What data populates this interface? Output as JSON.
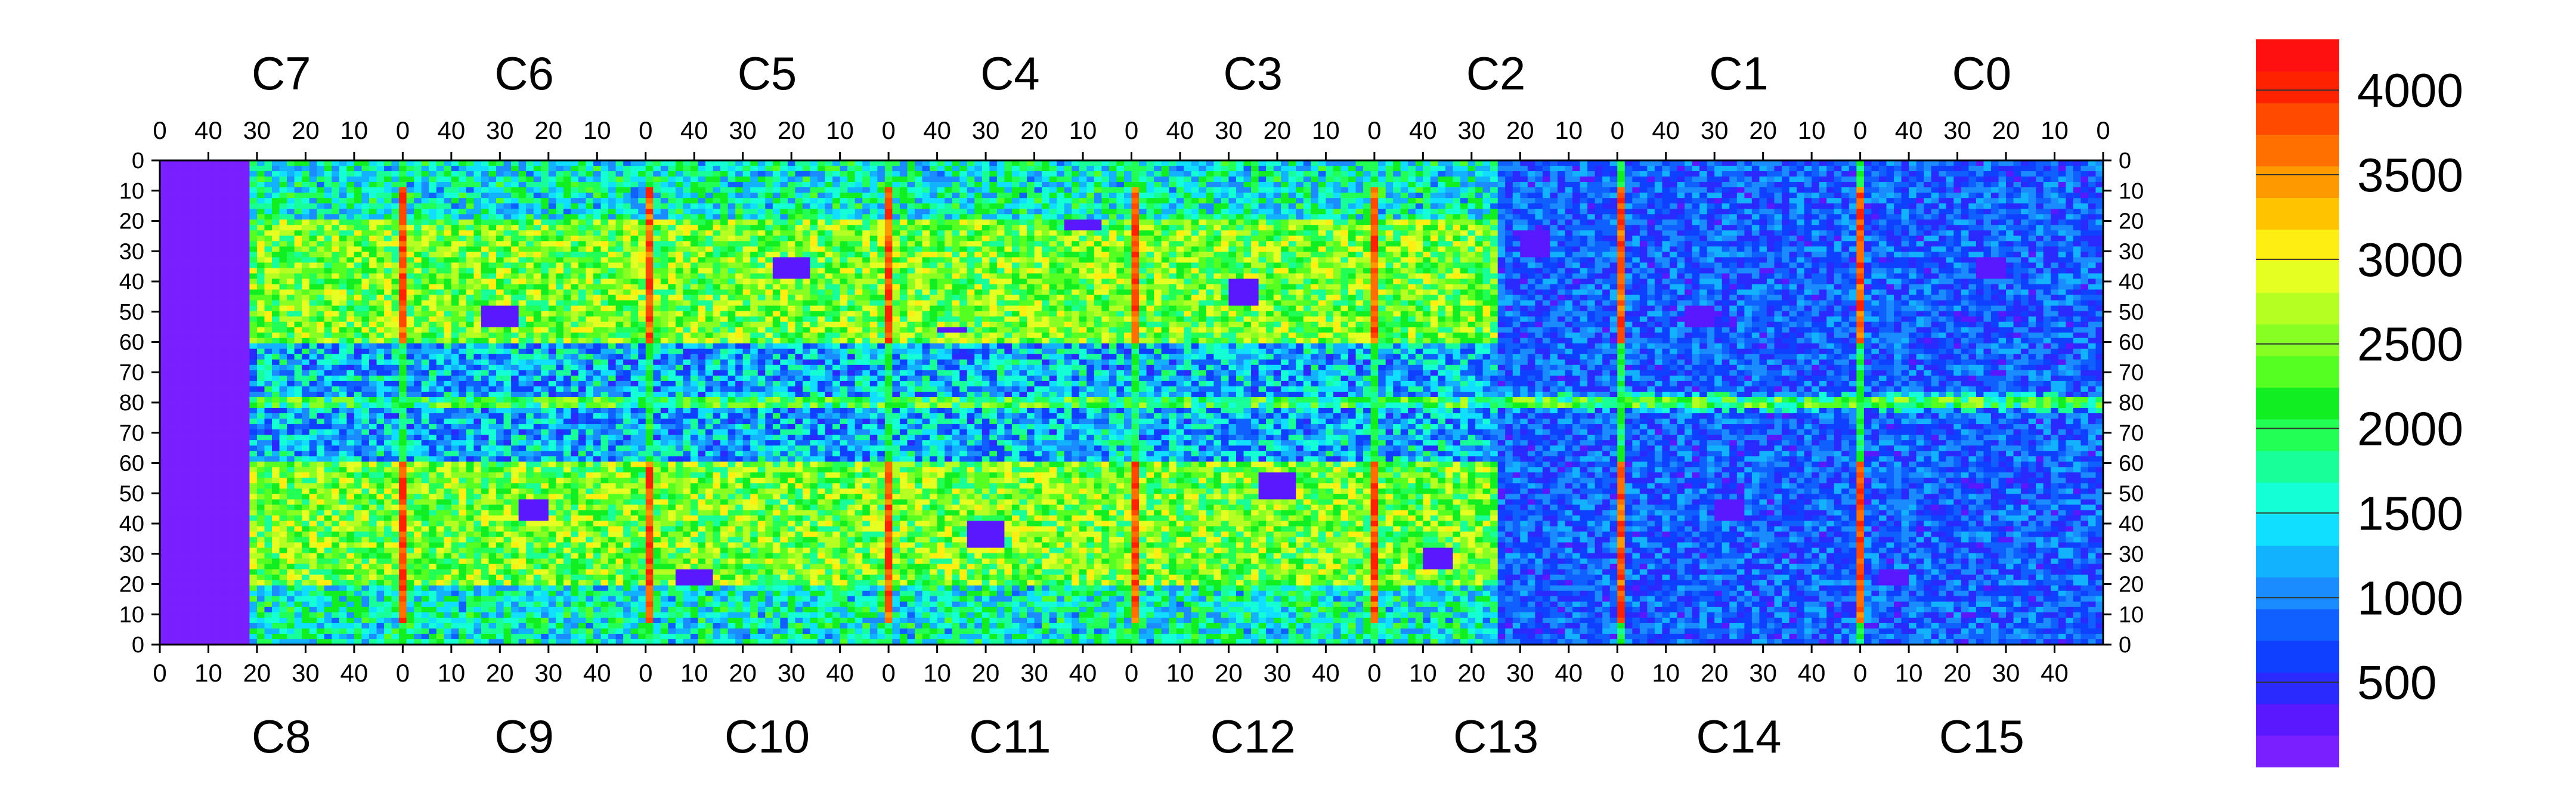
{
  "chart_data": {
    "type": "heatmap",
    "title": "",
    "colorbar": {
      "min": 0,
      "max": 4300,
      "ticks": [
        "500",
        "1000",
        "1500",
        "2000",
        "2500",
        "3000",
        "3500",
        "4000"
      ],
      "tick_values": [
        500,
        1000,
        1500,
        2000,
        2500,
        3000,
        3500,
        4000
      ],
      "colors": [
        "#7a1fff",
        "#5a18ff",
        "#2a2aff",
        "#1040ff",
        "#1060ff",
        "#1a8cff",
        "#12b2ff",
        "#10dfff",
        "#14ffd5",
        "#18ff9a",
        "#22ff55",
        "#11ee22",
        "#55ff22",
        "#88ff22",
        "#b5ff22",
        "#e6ff22",
        "#ffee11",
        "#ffc300",
        "#ff9900",
        "#ff7000",
        "#ff4a00",
        "#ff2200",
        "#ff1010"
      ]
    },
    "top_sections": [
      "C7",
      "C6",
      "C5",
      "C4",
      "C3",
      "C2",
      "C1",
      "C0"
    ],
    "bottom_sections": [
      "C8",
      "C9",
      "C10",
      "C11",
      "C12",
      "C13",
      "C14",
      "C15"
    ],
    "top_x_ticks": [
      "40",
      "30",
      "20",
      "10",
      "0"
    ],
    "bottom_x_ticks": [
      "0",
      "10",
      "20",
      "30",
      "40"
    ],
    "y_ticks": [
      "0",
      "10",
      "20",
      "30",
      "40",
      "50",
      "60",
      "70",
      "80",
      "70",
      "60",
      "50",
      "40",
      "30",
      "20",
      "10",
      "0"
    ],
    "grid": false,
    "features": {
      "center_row_value": 2100,
      "column_divider_values": [
        3800,
        2000,
        1500,
        3600
      ],
      "dead_region_value": 150,
      "bright_upper_band_value": 2400,
      "mid_band_value": 1200,
      "blocks_value": 200
    }
  }
}
